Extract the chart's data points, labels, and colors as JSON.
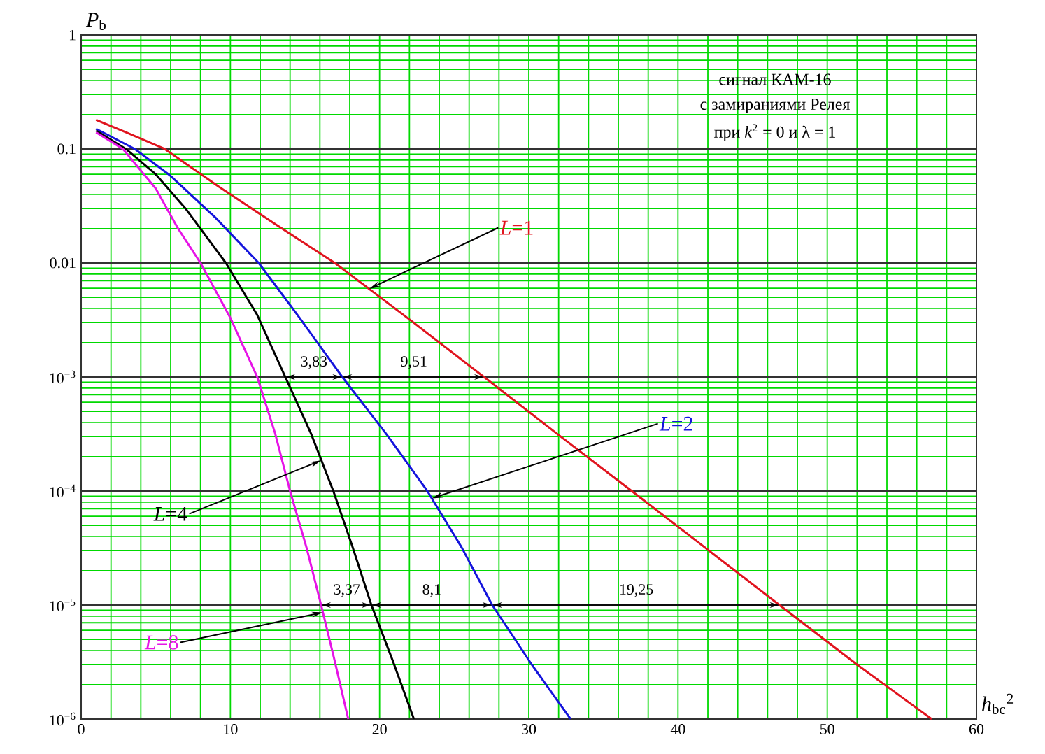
{
  "chart_data": {
    "type": "line",
    "xlabel": "*h*$_{bc}$$^{2}$",
    "ylabel": "*P*$_{b}$",
    "log": "y",
    "grid": true,
    "xlim": [
      0,
      60
    ],
    "xticks": [
      0,
      10,
      20,
      30,
      40,
      50,
      60
    ],
    "ylim": [
      1e-06,
      1
    ],
    "yticks": [
      1,
      0.1,
      0.01,
      {
        "value": 0.001,
        "label": "10$^{−3}$"
      },
      {
        "value": 0.0001,
        "label": "10$^{−4}$"
      },
      {
        "value": 1e-05,
        "label": "10$^{−5}$"
      },
      {
        "value": 1e-06,
        "label": "10$^{−6}$"
      }
    ],
    "series": [
      {
        "name": "*L*=1",
        "color": "#e0141e",
        "x": [
          1,
          3,
          5.6,
          9.2,
          13,
          17,
          22,
          27,
          32,
          36.9,
          41.8,
          46.8,
          52,
          57
        ],
        "values": [
          0.18,
          0.14,
          0.1,
          0.047,
          0.022,
          0.01,
          0.0032,
          0.001,
          0.00031,
          0.0001,
          3.2e-05,
          1e-05,
          3e-06,
          1e-06
        ]
      },
      {
        "name": "*L*=2",
        "color": "#1414dc",
        "x": [
          1,
          3.6,
          6,
          9,
          11.9,
          14.5,
          17.5,
          20.5,
          23.2,
          25.5,
          27.55,
          30.2,
          32.8
        ],
        "values": [
          0.15,
          0.1,
          0.058,
          0.025,
          0.01,
          0.0035,
          0.001,
          0.00031,
          0.0001,
          3.2e-05,
          1e-05,
          3e-06,
          1e-06
        ]
      },
      {
        "name": "*L*=4",
        "color": "#000000",
        "x": [
          1,
          3,
          5,
          7,
          9.7,
          11.8,
          13.68,
          15.4,
          16.9,
          18.2,
          19.45,
          20.9,
          22.3
        ],
        "values": [
          0.145,
          0.1,
          0.06,
          0.03,
          0.01,
          0.0035,
          0.001,
          0.00032,
          0.0001,
          3.2e-05,
          1e-05,
          3.2e-06,
          1e-06
        ]
      },
      {
        "name": "*L*=8",
        "color": "#e614e6",
        "x": [
          1,
          2.8,
          5,
          6.5,
          8,
          10,
          11.8,
          13,
          14,
          15.1,
          16.08,
          17,
          17.9
        ],
        "values": [
          0.14,
          0.1,
          0.045,
          0.02,
          0.01,
          0.0033,
          0.001,
          0.00032,
          0.0001,
          3.2e-05,
          1e-05,
          3.2e-06,
          1e-06
        ]
      }
    ],
    "annotations": [
      "сигнал КАМ-16",
      "с замираниями Релея",
      "при *k*$^{2}$ = 0  и  λ = 1",
      "3,83",
      "9,51",
      "3,37",
      "8,1",
      "19,25"
    ]
  }
}
